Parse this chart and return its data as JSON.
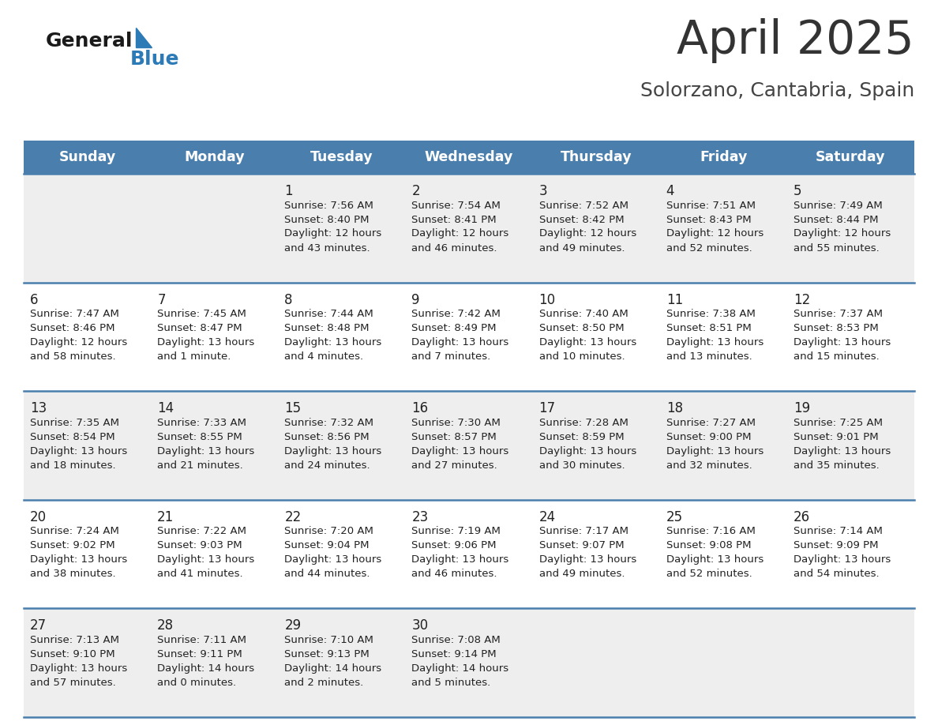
{
  "title": "April 2025",
  "subtitle": "Solorzano, Cantabria, Spain",
  "header_bg": "#4a7fad",
  "header_text": "#ffffff",
  "row_bg_light": "#eeeeee",
  "row_bg_white": "#ffffff",
  "text_color": "#222222",
  "border_color": "#4a7fad",
  "day_names": [
    "Sunday",
    "Monday",
    "Tuesday",
    "Wednesday",
    "Thursday",
    "Friday",
    "Saturday"
  ],
  "days": [
    {
      "day": 1,
      "col": 2,
      "row": 0,
      "sunrise": "7:56 AM",
      "sunset": "8:40 PM",
      "dl1": "Daylight: 12 hours",
      "dl2": "and 43 minutes."
    },
    {
      "day": 2,
      "col": 3,
      "row": 0,
      "sunrise": "7:54 AM",
      "sunset": "8:41 PM",
      "dl1": "Daylight: 12 hours",
      "dl2": "and 46 minutes."
    },
    {
      "day": 3,
      "col": 4,
      "row": 0,
      "sunrise": "7:52 AM",
      "sunset": "8:42 PM",
      "dl1": "Daylight: 12 hours",
      "dl2": "and 49 minutes."
    },
    {
      "day": 4,
      "col": 5,
      "row": 0,
      "sunrise": "7:51 AM",
      "sunset": "8:43 PM",
      "dl1": "Daylight: 12 hours",
      "dl2": "and 52 minutes."
    },
    {
      "day": 5,
      "col": 6,
      "row": 0,
      "sunrise": "7:49 AM",
      "sunset": "8:44 PM",
      "dl1": "Daylight: 12 hours",
      "dl2": "and 55 minutes."
    },
    {
      "day": 6,
      "col": 0,
      "row": 1,
      "sunrise": "7:47 AM",
      "sunset": "8:46 PM",
      "dl1": "Daylight: 12 hours",
      "dl2": "and 58 minutes."
    },
    {
      "day": 7,
      "col": 1,
      "row": 1,
      "sunrise": "7:45 AM",
      "sunset": "8:47 PM",
      "dl1": "Daylight: 13 hours",
      "dl2": "and 1 minute."
    },
    {
      "day": 8,
      "col": 2,
      "row": 1,
      "sunrise": "7:44 AM",
      "sunset": "8:48 PM",
      "dl1": "Daylight: 13 hours",
      "dl2": "and 4 minutes."
    },
    {
      "day": 9,
      "col": 3,
      "row": 1,
      "sunrise": "7:42 AM",
      "sunset": "8:49 PM",
      "dl1": "Daylight: 13 hours",
      "dl2": "and 7 minutes."
    },
    {
      "day": 10,
      "col": 4,
      "row": 1,
      "sunrise": "7:40 AM",
      "sunset": "8:50 PM",
      "dl1": "Daylight: 13 hours",
      "dl2": "and 10 minutes."
    },
    {
      "day": 11,
      "col": 5,
      "row": 1,
      "sunrise": "7:38 AM",
      "sunset": "8:51 PM",
      "dl1": "Daylight: 13 hours",
      "dl2": "and 13 minutes."
    },
    {
      "day": 12,
      "col": 6,
      "row": 1,
      "sunrise": "7:37 AM",
      "sunset": "8:53 PM",
      "dl1": "Daylight: 13 hours",
      "dl2": "and 15 minutes."
    },
    {
      "day": 13,
      "col": 0,
      "row": 2,
      "sunrise": "7:35 AM",
      "sunset": "8:54 PM",
      "dl1": "Daylight: 13 hours",
      "dl2": "and 18 minutes."
    },
    {
      "day": 14,
      "col": 1,
      "row": 2,
      "sunrise": "7:33 AM",
      "sunset": "8:55 PM",
      "dl1": "Daylight: 13 hours",
      "dl2": "and 21 minutes."
    },
    {
      "day": 15,
      "col": 2,
      "row": 2,
      "sunrise": "7:32 AM",
      "sunset": "8:56 PM",
      "dl1": "Daylight: 13 hours",
      "dl2": "and 24 minutes."
    },
    {
      "day": 16,
      "col": 3,
      "row": 2,
      "sunrise": "7:30 AM",
      "sunset": "8:57 PM",
      "dl1": "Daylight: 13 hours",
      "dl2": "and 27 minutes."
    },
    {
      "day": 17,
      "col": 4,
      "row": 2,
      "sunrise": "7:28 AM",
      "sunset": "8:59 PM",
      "dl1": "Daylight: 13 hours",
      "dl2": "and 30 minutes."
    },
    {
      "day": 18,
      "col": 5,
      "row": 2,
      "sunrise": "7:27 AM",
      "sunset": "9:00 PM",
      "dl1": "Daylight: 13 hours",
      "dl2": "and 32 minutes."
    },
    {
      "day": 19,
      "col": 6,
      "row": 2,
      "sunrise": "7:25 AM",
      "sunset": "9:01 PM",
      "dl1": "Daylight: 13 hours",
      "dl2": "and 35 minutes."
    },
    {
      "day": 20,
      "col": 0,
      "row": 3,
      "sunrise": "7:24 AM",
      "sunset": "9:02 PM",
      "dl1": "Daylight: 13 hours",
      "dl2": "and 38 minutes."
    },
    {
      "day": 21,
      "col": 1,
      "row": 3,
      "sunrise": "7:22 AM",
      "sunset": "9:03 PM",
      "dl1": "Daylight: 13 hours",
      "dl2": "and 41 minutes."
    },
    {
      "day": 22,
      "col": 2,
      "row": 3,
      "sunrise": "7:20 AM",
      "sunset": "9:04 PM",
      "dl1": "Daylight: 13 hours",
      "dl2": "and 44 minutes."
    },
    {
      "day": 23,
      "col": 3,
      "row": 3,
      "sunrise": "7:19 AM",
      "sunset": "9:06 PM",
      "dl1": "Daylight: 13 hours",
      "dl2": "and 46 minutes."
    },
    {
      "day": 24,
      "col": 4,
      "row": 3,
      "sunrise": "7:17 AM",
      "sunset": "9:07 PM",
      "dl1": "Daylight: 13 hours",
      "dl2": "and 49 minutes."
    },
    {
      "day": 25,
      "col": 5,
      "row": 3,
      "sunrise": "7:16 AM",
      "sunset": "9:08 PM",
      "dl1": "Daylight: 13 hours",
      "dl2": "and 52 minutes."
    },
    {
      "day": 26,
      "col": 6,
      "row": 3,
      "sunrise": "7:14 AM",
      "sunset": "9:09 PM",
      "dl1": "Daylight: 13 hours",
      "dl2": "and 54 minutes."
    },
    {
      "day": 27,
      "col": 0,
      "row": 4,
      "sunrise": "7:13 AM",
      "sunset": "9:10 PM",
      "dl1": "Daylight: 13 hours",
      "dl2": "and 57 minutes."
    },
    {
      "day": 28,
      "col": 1,
      "row": 4,
      "sunrise": "7:11 AM",
      "sunset": "9:11 PM",
      "dl1": "Daylight: 14 hours",
      "dl2": "and 0 minutes."
    },
    {
      "day": 29,
      "col": 2,
      "row": 4,
      "sunrise": "7:10 AM",
      "sunset": "9:13 PM",
      "dl1": "Daylight: 14 hours",
      "dl2": "and 2 minutes."
    },
    {
      "day": 30,
      "col": 3,
      "row": 4,
      "sunrise": "7:08 AM",
      "sunset": "9:14 PM",
      "dl1": "Daylight: 14 hours",
      "dl2": "and 5 minutes."
    }
  ],
  "num_rows": 5,
  "num_cols": 7
}
